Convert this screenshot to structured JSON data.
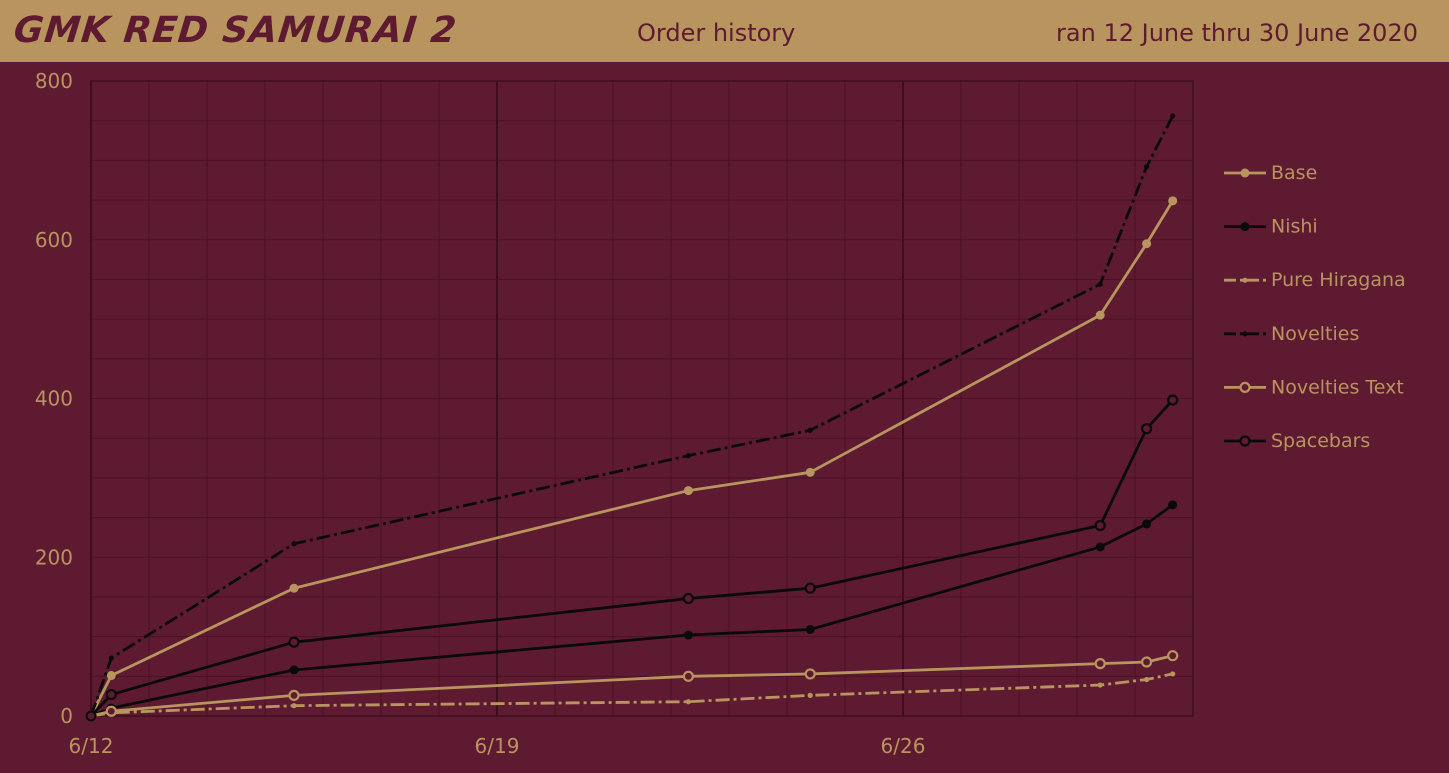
{
  "header": {
    "brand": "GMK RED SAMURAI 2",
    "subtitle": "Order history",
    "dates": "ran 12 June thru 30 June 2020"
  },
  "colors": {
    "background": "#5e1a30",
    "header": "#b8955e",
    "tan": "#b8955e",
    "black": "#0a0a0a",
    "grid": "#4a1224"
  },
  "chart_data": {
    "type": "line",
    "title": "",
    "xlabel": "",
    "ylabel": "",
    "xlim": [
      0,
      19
    ],
    "ylim": [
      0,
      800
    ],
    "y_ticks": [
      0,
      200,
      400,
      600,
      800
    ],
    "y_tick_labels": [
      "0",
      "200",
      "400",
      "600",
      "800"
    ],
    "x_ticks": [
      0,
      7,
      14
    ],
    "x_tick_labels": [
      "6/12",
      "6/19",
      "6/26"
    ],
    "grid": true,
    "legend_position": "right",
    "series": [
      {
        "name": "Base",
        "color": "#b8955e",
        "marker": "filled-dot",
        "dash": "solid",
        "x": [
          0,
          0.35,
          3.5,
          10.3,
          12.4,
          17.4,
          18.2,
          18.65
        ],
        "y": [
          0,
          51,
          161,
          284,
          307,
          505,
          595,
          649
        ]
      },
      {
        "name": "Nishi",
        "color": "#0a0a0a",
        "marker": "filled-dot",
        "dash": "solid",
        "x": [
          0,
          0.35,
          3.5,
          10.3,
          12.4,
          17.4,
          18.2,
          18.65
        ],
        "y": [
          0,
          10,
          58,
          102,
          109,
          213,
          242,
          266
        ]
      },
      {
        "name": "Pure Hiragana",
        "color": "#b8955e",
        "marker": "small-dot",
        "dash": "dash-dot",
        "x": [
          0,
          0.35,
          3.5,
          10.3,
          12.4,
          17.4,
          18.2,
          18.65
        ],
        "y": [
          0,
          4,
          13,
          18,
          26,
          39,
          46,
          53
        ]
      },
      {
        "name": "Novelties",
        "color": "#0a0a0a",
        "marker": "small-dot",
        "dash": "dash-dot",
        "x": [
          0,
          0.35,
          3.5,
          10.3,
          12.4,
          17.4,
          18.2,
          18.65
        ],
        "y": [
          0,
          73,
          217,
          328,
          360,
          544,
          692,
          756
        ]
      },
      {
        "name": "Novelties Text",
        "color": "#b8955e",
        "marker": "open-circle",
        "dash": "solid",
        "x": [
          0,
          0.35,
          3.5,
          10.3,
          12.4,
          17.4,
          18.2,
          18.65
        ],
        "y": [
          0,
          6,
          26,
          50,
          53,
          66,
          68,
          76
        ]
      },
      {
        "name": "Spacebars",
        "color": "#0a0a0a",
        "marker": "open-circle",
        "dash": "solid",
        "x": [
          0,
          0.35,
          3.5,
          10.3,
          12.4,
          17.4,
          18.2,
          18.65
        ],
        "y": [
          0,
          27,
          93,
          148,
          161,
          240,
          362,
          398
        ]
      }
    ]
  }
}
